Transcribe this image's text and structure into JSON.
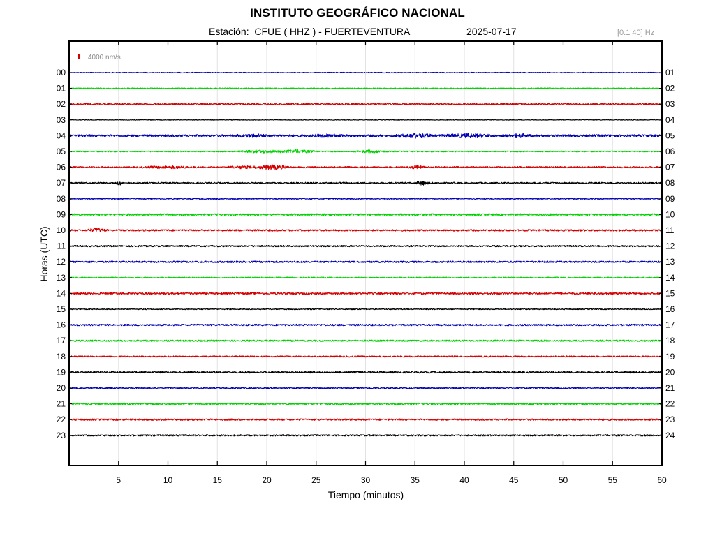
{
  "header": {
    "title": "INSTITUTO GEOGRÁFICO NACIONAL",
    "station_line": "Estación:  CFUE ( HHZ ) - FUERTEVENTURA",
    "date": "2025-07-17",
    "filter": "[0.1 40] Hz"
  },
  "chart_data": {
    "type": "line",
    "title": "INSTITUTO GEOGRÁFICO NACIONAL",
    "xlabel": "Tiempo (minutos)",
    "ylabel": "Horas (UTC)",
    "xlim": [
      0,
      60
    ],
    "x_ticks": [
      "5",
      "10",
      "15",
      "20",
      "25",
      "30",
      "35",
      "40",
      "45",
      "50",
      "55",
      "60"
    ],
    "left_hour_labels": [
      "00",
      "01",
      "02",
      "03",
      "04",
      "05",
      "06",
      "07",
      "08",
      "09",
      "10",
      "11",
      "12",
      "13",
      "14",
      "15",
      "16",
      "17",
      "18",
      "19",
      "20",
      "21",
      "22",
      "23"
    ],
    "right_hour_labels": [
      "01",
      "02",
      "03",
      "04",
      "05",
      "06",
      "07",
      "08",
      "09",
      "10",
      "11",
      "12",
      "13",
      "14",
      "15",
      "16",
      "17",
      "18",
      "19",
      "20",
      "21",
      "22",
      "23",
      "24"
    ],
    "scale_label": "4000 nm/s",
    "scale_color": "#d40000",
    "trace_colors": [
      "#0000b4",
      "#00d200",
      "#d40000",
      "#000000"
    ],
    "grid": true,
    "series": [
      {
        "hour": "00",
        "color": "#0000b4",
        "noise": 0.6
      },
      {
        "hour": "01",
        "color": "#00d200",
        "noise": 0.7
      },
      {
        "hour": "02",
        "color": "#d40000",
        "noise": 1.1
      },
      {
        "hour": "03",
        "color": "#000000",
        "noise": 0.4
      },
      {
        "hour": "04",
        "color": "#0000b4",
        "noise": 1.6,
        "bursts": [
          [
            35,
            2.5,
            2.2
          ],
          [
            40.5,
            3.0,
            2.0
          ],
          [
            45.5,
            2.0,
            1.8
          ],
          [
            18.5,
            2.0,
            1.5
          ],
          [
            26,
            2.0,
            1.4
          ]
        ]
      },
      {
        "hour": "05",
        "color": "#00d200",
        "noise": 0.8,
        "bursts": [
          [
            19.5,
            2.5,
            1.8
          ],
          [
            23,
            2.5,
            1.8
          ],
          [
            30.5,
            2.0,
            1.6
          ]
        ]
      },
      {
        "hour": "06",
        "color": "#d40000",
        "noise": 1.1,
        "bursts": [
          [
            20.5,
            2.0,
            2.8
          ],
          [
            35.2,
            1.0,
            2.0
          ],
          [
            10,
            3.0,
            1.3
          ],
          [
            17.5,
            2.0,
            1.3
          ]
        ]
      },
      {
        "hour": "07",
        "color": "#000000",
        "noise": 1.1,
        "bursts": [
          [
            5.1,
            0.6,
            2.5
          ],
          [
            35.7,
            0.8,
            2.5
          ]
        ]
      },
      {
        "hour": "08",
        "color": "#0000b4",
        "noise": 0.7
      },
      {
        "hour": "09",
        "color": "#00d200",
        "noise": 1.3
      },
      {
        "hour": "10",
        "color": "#d40000",
        "noise": 1.2,
        "bursts": [
          [
            2.8,
            1.2,
            2.2
          ]
        ]
      },
      {
        "hour": "11",
        "color": "#000000",
        "noise": 1.1
      },
      {
        "hour": "12",
        "color": "#0000b4",
        "noise": 1.2
      },
      {
        "hour": "13",
        "color": "#00d200",
        "noise": 0.8
      },
      {
        "hour": "14",
        "color": "#d40000",
        "noise": 1.3
      },
      {
        "hour": "15",
        "color": "#000000",
        "noise": 0.7
      },
      {
        "hour": "16",
        "color": "#0000b4",
        "noise": 1.2
      },
      {
        "hour": "17",
        "color": "#00d200",
        "noise": 1.1
      },
      {
        "hour": "18",
        "color": "#d40000",
        "noise": 1.0
      },
      {
        "hour": "19",
        "color": "#000000",
        "noise": 1.3
      },
      {
        "hour": "20",
        "color": "#0000b4",
        "noise": 0.9
      },
      {
        "hour": "21",
        "color": "#00d200",
        "noise": 1.3
      },
      {
        "hour": "22",
        "color": "#d40000",
        "noise": 1.2
      },
      {
        "hour": "23",
        "color": "#000000",
        "noise": 1.1
      }
    ]
  }
}
